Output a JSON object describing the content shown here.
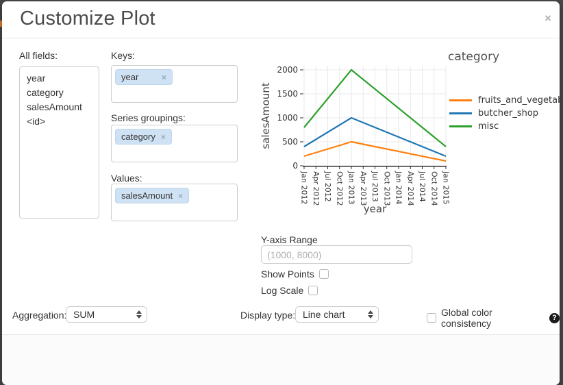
{
  "dialog": {
    "title": "Customize Plot"
  },
  "icons": {
    "close": "×",
    "pill_remove": "×",
    "help": "?"
  },
  "fields_panel": {
    "label": "All fields:",
    "items": [
      "year",
      "category",
      "salesAmount",
      "<id>"
    ]
  },
  "wells": [
    {
      "label": "Keys:",
      "pills": [
        {
          "text": "year"
        }
      ]
    },
    {
      "label": "Series groupings:",
      "pills": [
        {
          "text": "category"
        }
      ]
    },
    {
      "label": "Values:",
      "pills": [
        {
          "text": "salesAmount"
        }
      ]
    }
  ],
  "chart_data": {
    "type": "line",
    "xlabel": "year",
    "ylabel": "salesAmount",
    "legend_title": "category",
    "legend_position": "right",
    "grid": true,
    "ylim": [
      0,
      2000
    ],
    "y_ticks": [
      0,
      500,
      1000,
      1500,
      2000
    ],
    "x_ticks": [
      "Jan 2012",
      "Apr 2012",
      "Jul 2012",
      "Oct 2012",
      "Jan 2013",
      "Apr 2013",
      "Jul 2013",
      "Oct 2013",
      "Jan 2014",
      "Apr 2014",
      "Jul 2014",
      "Oct 2014",
      "Jan 2015"
    ],
    "series": [
      {
        "name": "fruits_and_vegetables",
        "color": "#ff7f0e",
        "x": [
          "Jan 2012",
          "Jan 2013",
          "Jan 2015"
        ],
        "values": [
          200,
          500,
          100
        ]
      },
      {
        "name": "butcher_shop",
        "color": "#1f77b4",
        "x": [
          "Jan 2012",
          "Jan 2013",
          "Jan 2015"
        ],
        "values": [
          400,
          1000,
          200
        ]
      },
      {
        "name": "misc",
        "color": "#2ca02c",
        "x": [
          "Jan 2012",
          "Jan 2013",
          "Jan 2015"
        ],
        "values": [
          800,
          2000,
          400
        ]
      }
    ]
  },
  "y_axis_range": {
    "label": "Y-axis Range",
    "placeholder": "(1000, 8000)",
    "value": ""
  },
  "show_points": {
    "label": "Show Points",
    "checked": false
  },
  "log_scale": {
    "label": "Log Scale",
    "checked": false
  },
  "aggregation": {
    "label": "Aggregation:",
    "value": "SUM"
  },
  "display_type": {
    "label": "Display type:",
    "value": "Line chart"
  },
  "global_color": {
    "label": "Global color consistency",
    "checked": false
  }
}
